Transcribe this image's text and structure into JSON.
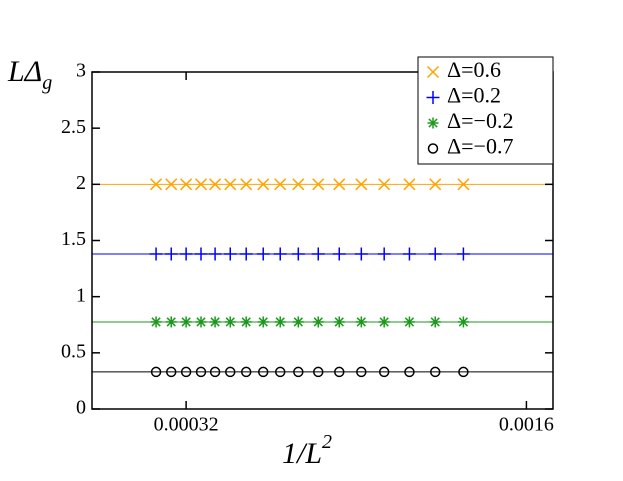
{
  "chart_data": {
    "type": "scatter",
    "ylabel": "LΔ",
    "ylabel_sub": "g",
    "xlabel": "1/L",
    "xlabel_sup": "2",
    "xlim": [
      -3.4e-05,
      0.0017
    ],
    "ylim": [
      0,
      3
    ],
    "xticks": [
      0.00032,
      0.0016
    ],
    "yticks": [
      0,
      0.5,
      1,
      1.5,
      2,
      2.5,
      3
    ],
    "legend": "upper right",
    "x": [
      0.000207,
      0.000264,
      0.00032,
      0.000376,
      0.000429,
      0.000486,
      0.000546,
      0.00061,
      0.000674,
      0.000742,
      0.000817,
      0.000896,
      0.000979,
      0.001065,
      0.00116,
      0.001257,
      0.001363
    ],
    "series": [
      {
        "name": "Δ=0.6",
        "color": "#ffa500",
        "marker": "x",
        "fit": 2.0,
        "values": [
          2.0,
          2.0,
          2.0,
          2.0,
          2.0,
          2.0,
          2.0,
          2.0,
          2.0,
          2.0,
          2.0,
          2.0,
          2.0,
          2.0,
          2.0,
          2.0,
          2.0
        ]
      },
      {
        "name": "Δ=0.2",
        "color": "#0000ff",
        "marker": "plus",
        "fit": 1.38,
        "values": [
          1.38,
          1.38,
          1.38,
          1.38,
          1.38,
          1.38,
          1.38,
          1.38,
          1.38,
          1.38,
          1.38,
          1.38,
          1.38,
          1.38,
          1.38,
          1.38,
          1.38
        ]
      },
      {
        "name": "Δ=−0.2",
        "color": "#1a9a1a",
        "marker": "star",
        "fit": 0.775,
        "values": [
          0.775,
          0.775,
          0.775,
          0.775,
          0.775,
          0.775,
          0.775,
          0.775,
          0.775,
          0.775,
          0.775,
          0.775,
          0.775,
          0.775,
          0.775,
          0.775,
          0.775
        ]
      },
      {
        "name": "Δ=−0.7",
        "color": "#000000",
        "marker": "circle",
        "fit": 0.33,
        "values": [
          0.33,
          0.33,
          0.33,
          0.33,
          0.33,
          0.33,
          0.33,
          0.33,
          0.33,
          0.33,
          0.33,
          0.33,
          0.33,
          0.33,
          0.33,
          0.33,
          0.33
        ]
      }
    ]
  }
}
